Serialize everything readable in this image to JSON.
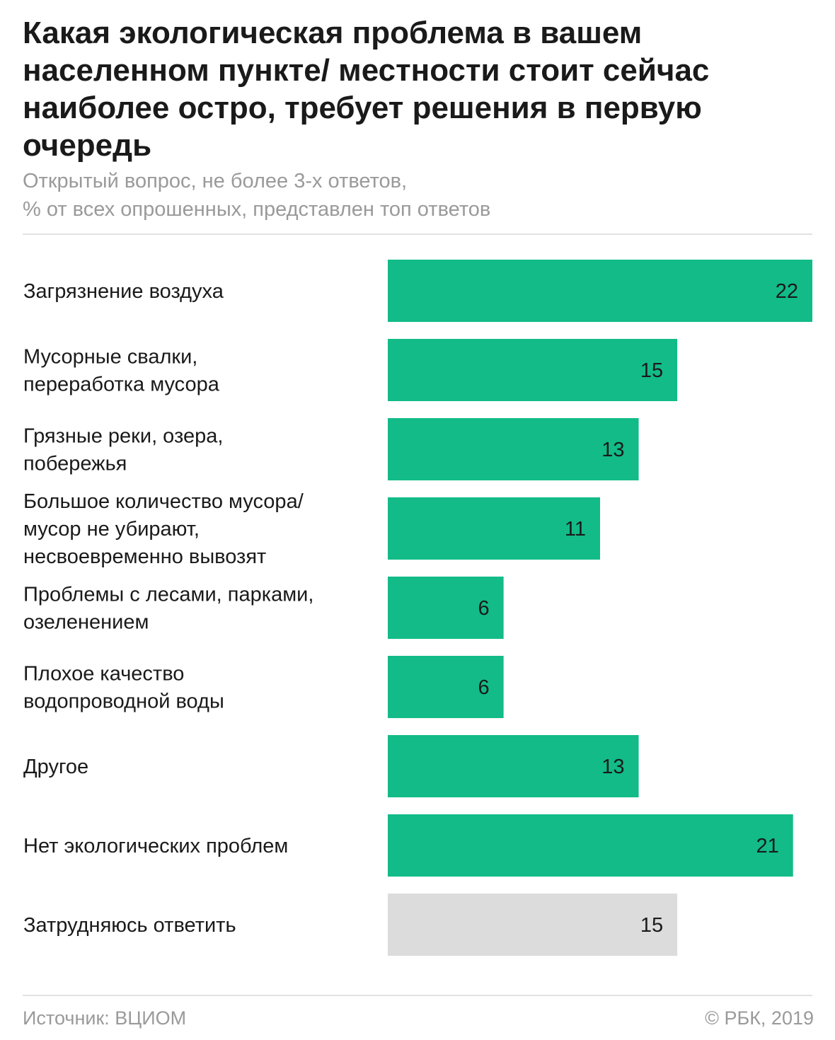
{
  "header": {
    "title": "Какая экологическая проблема в вашем населенном пункте/ местности стоит сейчас наиболее остро, требует решения в первую очередь",
    "subtitle_lines": [
      "Открытый вопрос, не более 3-х ответов,",
      "% от всех опрошенных, представлен топ ответов"
    ]
  },
  "footer": {
    "source": "Источник: ВЦИОМ",
    "copyright": "© РБК, 2019"
  },
  "colors": {
    "bar_main": "#12bb87",
    "bar_muted": "#dcdcdc"
  },
  "chart_data": {
    "type": "bar",
    "orientation": "horizontal",
    "unit": "%",
    "xlim": [
      0,
      22
    ],
    "grid": false,
    "categories": [
      [
        "Загрязнение воздуха"
      ],
      [
        "Мусорные свалки,",
        "переработка мусора"
      ],
      [
        "Грязные реки, озера,",
        "побережья"
      ],
      [
        "Большое количество мусора/",
        "мусор не убирают,",
        "несвоевременно вывозят"
      ],
      [
        "Проблемы с лесами, парками,",
        "озеленением"
      ],
      [
        "Плохое качество",
        "водопроводной воды"
      ],
      [
        "Другое"
      ],
      [
        "Нет экологических проблем"
      ],
      [
        "Затрудняюсь ответить"
      ]
    ],
    "values": [
      22,
      15,
      13,
      11,
      6,
      6,
      13,
      21,
      15
    ],
    "value_labels": [
      "22",
      "15",
      "13",
      "11",
      "6",
      "6",
      "13",
      "21",
      "15"
    ],
    "bar_colors": [
      "#12bb87",
      "#12bb87",
      "#12bb87",
      "#12bb87",
      "#12bb87",
      "#12bb87",
      "#12bb87",
      "#12bb87",
      "#dcdcdc"
    ]
  }
}
